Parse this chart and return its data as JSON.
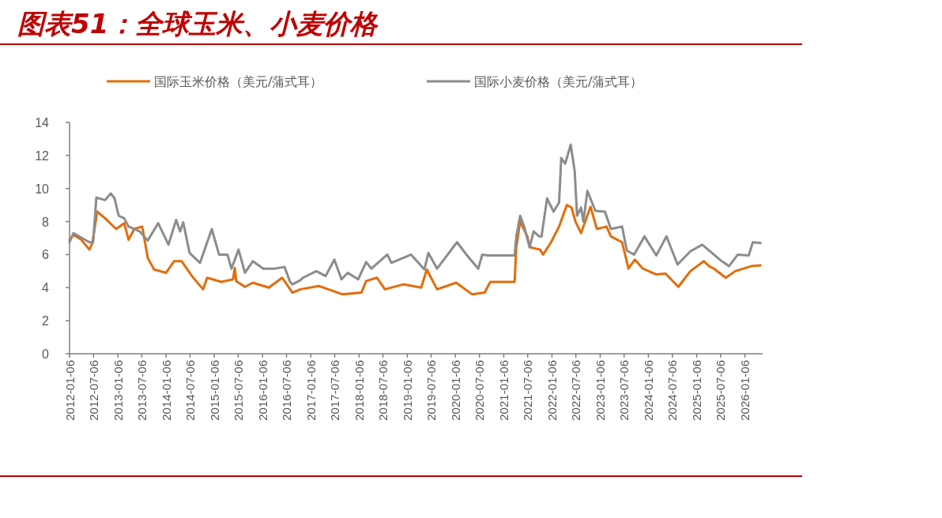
{
  "chart_data": {
    "type": "line",
    "title": "图表51：全球玉米、小麦价格",
    "legend": "top",
    "grid": false,
    "xlim": [
      "2012-01-06",
      "2026-05-20"
    ],
    "xticks": [
      "2012-01-06",
      "2012-07-06",
      "2013-01-06",
      "2013-07-06",
      "2014-01-06",
      "2014-07-06",
      "2015-01-06",
      "2015-07-06",
      "2016-01-06",
      "2016-07-06",
      "2017-01-06",
      "2017-07-06",
      "2018-01-06",
      "2018-07-06",
      "2019-01-06",
      "2019-07-06",
      "2020-01-06",
      "2020-07-06",
      "2021-01-06",
      "2021-07-06",
      "2022-01-06",
      "2022-07-06",
      "2023-01-06",
      "2023-07-06",
      "2024-01-06",
      "2024-07-06",
      "2025-01-06",
      "2025-07-06",
      "2026-01-06"
    ],
    "ylim": [
      0,
      14
    ],
    "yticks": [
      0,
      2,
      4,
      6,
      8,
      10,
      12,
      14
    ],
    "series": [
      {
        "name": "国际玉米价格（美元/蒲式耳）",
        "color": "#e36c0a",
        "x": [
          "2012-01-06",
          "2012-02-05",
          "2012-04-04",
          "2012-06-04",
          "2012-06-27",
          "2012-08-02",
          "2012-10-01",
          "2012-12-24",
          "2013-02-23",
          "2013-03-28",
          "2013-05-10",
          "2013-07-09",
          "2013-08-20",
          "2013-10-07",
          "2014-01-06",
          "2014-03-07",
          "2014-05-04",
          "2014-07-21",
          "2014-10-13",
          "2014-11-13",
          "2015-03-01",
          "2015-05-28",
          "2015-06-10",
          "2015-06-21",
          "2015-08-26",
          "2015-10-25",
          "2016-02-23",
          "2016-06-03",
          "2016-08-20",
          "2016-10-19",
          "2017-03-07",
          "2017-09-01",
          "2018-01-24",
          "2018-03-01",
          "2018-05-22",
          "2018-07-21",
          "2018-12-07",
          "2019-04-22",
          "2019-06-03",
          "2019-08-20",
          "2020-01-12",
          "2020-05-10",
          "2020-08-14",
          "2020-09-26",
          "2021-03-29",
          "2021-04-11",
          "2021-05-10",
          "2021-07-03",
          "2021-07-21",
          "2021-10-08",
          "2021-10-31",
          "2021-12-30",
          "2022-03-01",
          "2022-04-28",
          "2022-06-03",
          "2022-07-03",
          "2022-08-14",
          "2022-10-25",
          "2022-12-12",
          "2023-02-23",
          "2023-03-28",
          "2023-06-21",
          "2023-08-08",
          "2023-09-26",
          "2023-11-25",
          "2024-03-06",
          "2024-05-15",
          "2024-08-20",
          "2024-11-19",
          "2025-03-01",
          "2025-04-11",
          "2025-05-16",
          "2025-08-14",
          "2025-10-25",
          "2026-02-23",
          "2026-05-04"
        ],
        "values": [
          6.9,
          7.2,
          6.9,
          6.3,
          6.7,
          8.6,
          8.2,
          7.55,
          7.9,
          6.9,
          7.55,
          7.7,
          5.8,
          5.1,
          4.9,
          5.6,
          5.6,
          4.7,
          3.9,
          4.6,
          4.35,
          4.5,
          5.2,
          4.4,
          4.05,
          4.3,
          4.0,
          4.6,
          3.7,
          3.9,
          4.1,
          3.6,
          3.7,
          4.4,
          4.6,
          3.9,
          4.2,
          4.0,
          5.1,
          3.9,
          4.3,
          3.6,
          3.7,
          4.35,
          4.35,
          6.45,
          8.0,
          7.1,
          6.45,
          6.3,
          6.0,
          6.75,
          7.7,
          9.0,
          8.85,
          8.0,
          7.3,
          8.9,
          7.55,
          7.7,
          7.1,
          6.75,
          5.15,
          5.7,
          5.15,
          4.8,
          4.85,
          4.05,
          5.0,
          5.6,
          5.3,
          5.15,
          4.6,
          5.0,
          5.3,
          5.35
        ]
      },
      {
        "name": "国际小麦价格（美元/蒲式耳）",
        "color": "#8c8c8c",
        "x": [
          "2012-01-06",
          "2012-02-05",
          "2012-06-04",
          "2012-07-03",
          "2012-07-27",
          "2012-10-01",
          "2012-11-13",
          "2012-12-12",
          "2013-01-12",
          "2013-02-23",
          "2013-03-28",
          "2013-06-21",
          "2013-08-20",
          "2013-11-07",
          "2014-01-24",
          "2014-03-23",
          "2014-04-22",
          "2014-05-16",
          "2014-07-03",
          "2014-09-20",
          "2014-12-18",
          "2015-02-11",
          "2015-04-16",
          "2015-05-16",
          "2015-07-09",
          "2015-08-26",
          "2015-10-25",
          "2016-01-12",
          "2016-04-03",
          "2016-06-21",
          "2016-08-02",
          "2016-08-20",
          "2016-10-19",
          "2016-11-07",
          "2017-02-17",
          "2017-04-28",
          "2017-07-03",
          "2017-08-26",
          "2017-10-13",
          "2017-12-30",
          "2018-03-01",
          "2018-04-10",
          "2018-08-08",
          "2018-09-08",
          "2019-02-04",
          "2019-05-16",
          "2019-06-15",
          "2019-08-20",
          "2020-01-18",
          "2020-03-29",
          "2020-06-27",
          "2020-07-27",
          "2020-09-08",
          "2021-03-29",
          "2021-04-11",
          "2021-05-10",
          "2021-06-09",
          "2021-07-21",
          "2021-08-20",
          "2021-10-01",
          "2021-10-19",
          "2021-11-30",
          "2022-01-18",
          "2022-03-01",
          "2022-03-17",
          "2022-04-16",
          "2022-05-28",
          "2022-06-27",
          "2022-07-15",
          "2022-08-14",
          "2022-09-01",
          "2022-10-01",
          "2022-12-01",
          "2023-02-11",
          "2023-03-28",
          "2023-06-21",
          "2023-07-27",
          "2023-09-20",
          "2023-12-07",
          "2024-03-06",
          "2024-05-22",
          "2024-08-14",
          "2024-11-19",
          "2025-02-17",
          "2025-05-16",
          "2025-07-15",
          "2025-09-08",
          "2025-11-13",
          "2026-02-04",
          "2026-03-07",
          "2026-05-04"
        ],
        "values": [
          6.75,
          7.3,
          6.75,
          6.75,
          9.45,
          9.3,
          9.7,
          9.4,
          8.35,
          8.2,
          7.7,
          7.4,
          6.85,
          7.9,
          6.6,
          8.1,
          7.4,
          7.95,
          6.1,
          5.5,
          7.55,
          6.0,
          6.0,
          5.15,
          6.3,
          4.9,
          5.6,
          5.15,
          5.15,
          5.25,
          4.35,
          4.2,
          4.45,
          4.6,
          5.0,
          4.7,
          5.7,
          4.5,
          4.9,
          4.5,
          5.55,
          5.15,
          6.0,
          5.5,
          6.0,
          5.1,
          6.1,
          5.15,
          6.75,
          6.0,
          5.15,
          6.0,
          5.95,
          5.95,
          7.1,
          8.35,
          7.7,
          6.45,
          7.4,
          7.1,
          7.1,
          9.4,
          8.6,
          9.15,
          11.85,
          11.5,
          12.65,
          11.05,
          8.35,
          8.85,
          8.0,
          9.85,
          8.65,
          8.6,
          7.55,
          7.7,
          6.25,
          6.0,
          7.1,
          5.95,
          7.1,
          5.4,
          6.2,
          6.6,
          6.0,
          5.6,
          5.3,
          6.0,
          5.95,
          6.75,
          6.7
        ]
      }
    ]
  }
}
